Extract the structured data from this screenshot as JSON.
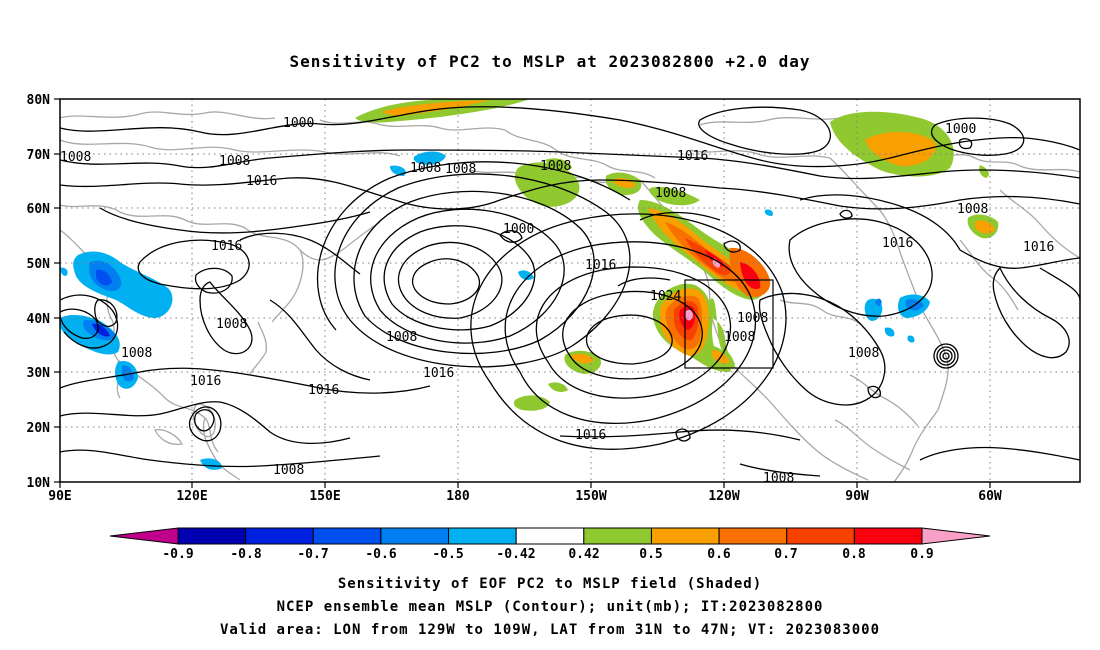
{
  "title": "Sensitivity of PC2 to MSLP at 2023082800 +2.0 day",
  "axes": {
    "x_ticks": [
      "90E",
      "120E",
      "150E",
      "180",
      "150W",
      "120W",
      "90W",
      "60W"
    ],
    "y_ticks": [
      "10N",
      "20N",
      "30N",
      "40N",
      "50N",
      "60N",
      "70N",
      "80N"
    ]
  },
  "contour_labels": [
    "1000",
    "1008",
    "1016",
    "1008",
    "1016",
    "1008",
    "1008",
    "1000",
    "1008",
    "1016",
    "1024",
    "1008",
    "1008",
    "1016",
    "1016",
    "1016",
    "1008",
    "1016",
    "1008",
    "1008",
    "1008",
    "1016",
    "1008",
    "1000",
    "1016",
    "1008",
    "1016",
    "1008",
    "1008"
  ],
  "colorbar": {
    "labels": [
      "-0.9",
      "-0.8",
      "-0.7",
      "-0.6",
      "-0.5",
      "-0.42",
      "0.42",
      "0.5",
      "0.6",
      "0.7",
      "0.8",
      "0.9"
    ],
    "colors": [
      "#0000b0",
      "#0020e0",
      "#0050f0",
      "#0080f0",
      "#00b0f0",
      "#ffffff",
      "#90c830",
      "#f8a000",
      "#f87000",
      "#f84000",
      "#f80010"
    ],
    "low_end_color": "#c0008a",
    "high_end_color": "#f8a0c8"
  },
  "captions": [
    "Sensitivity of EOF PC2 to MSLP field (Shaded)",
    "NCEP ensemble mean MSLP (Contour); unit(mb); IT:2023082800",
    "Valid area: LON from 129W to 109W, LAT from 31N to 47N; VT: 2023083000"
  ]
}
